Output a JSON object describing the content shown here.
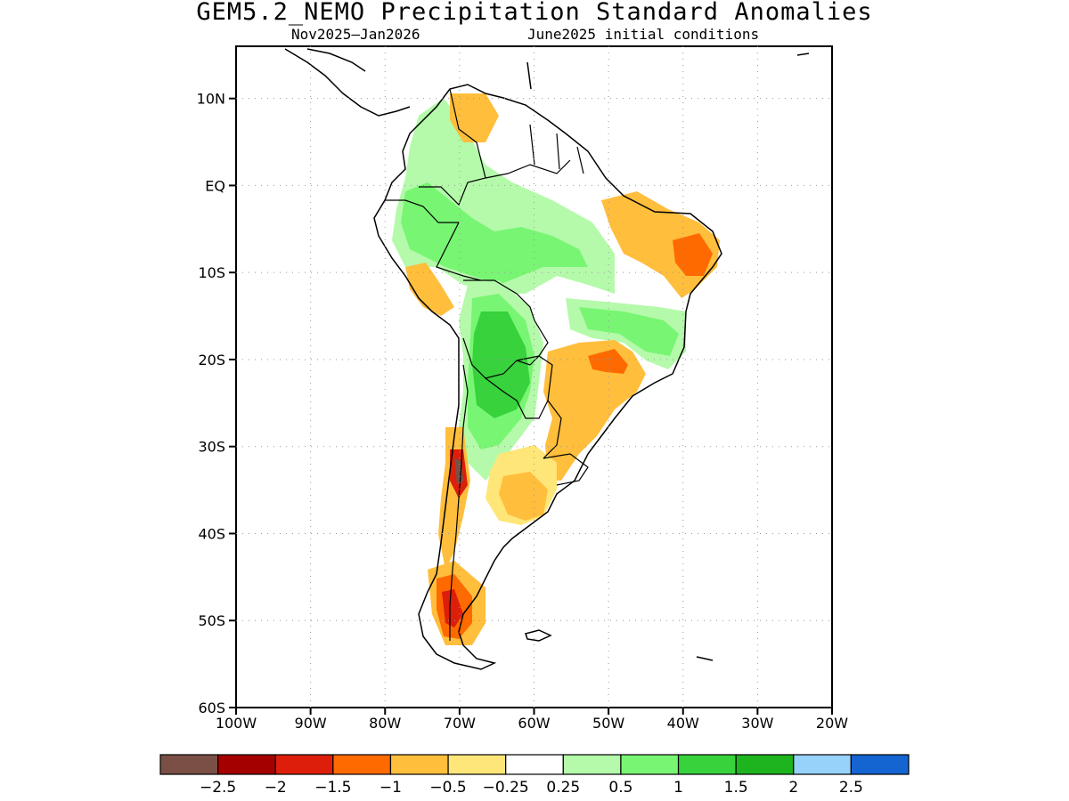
{
  "title": "GEM5.2_NEMO Precipitation Standard Anomalies",
  "period": "Nov2025–Jan2026",
  "initial_conditions": "June2025 initial conditions",
  "map": {
    "lat_labels": [
      "10N",
      "EQ",
      "10S",
      "20S",
      "30S",
      "40S",
      "50S",
      "60S"
    ],
    "lon_labels": [
      "100W",
      "90W",
      "80W",
      "70W",
      "60W",
      "50W",
      "40W",
      "30W",
      "20W"
    ],
    "lat_range": [
      -60,
      16
    ],
    "lon_range": [
      -100,
      -20
    ],
    "grid": "dotted"
  },
  "legend": {
    "colors": [
      "#7a5046",
      "#a50000",
      "#dc1e0a",
      "#ff6a00",
      "#ffbe3c",
      "#ffe678",
      "#ffffff",
      "#b4faaa",
      "#78f573",
      "#37d23c",
      "#1eb41e",
      "#96d2fa",
      "#1464d2"
    ],
    "tick_labels": [
      "−2.5",
      "−2",
      "−1.5",
      "−1",
      "−0.5",
      "−0.25",
      "0.25",
      "0.5",
      "1",
      "1.5",
      "2",
      "2.5"
    ]
  }
}
